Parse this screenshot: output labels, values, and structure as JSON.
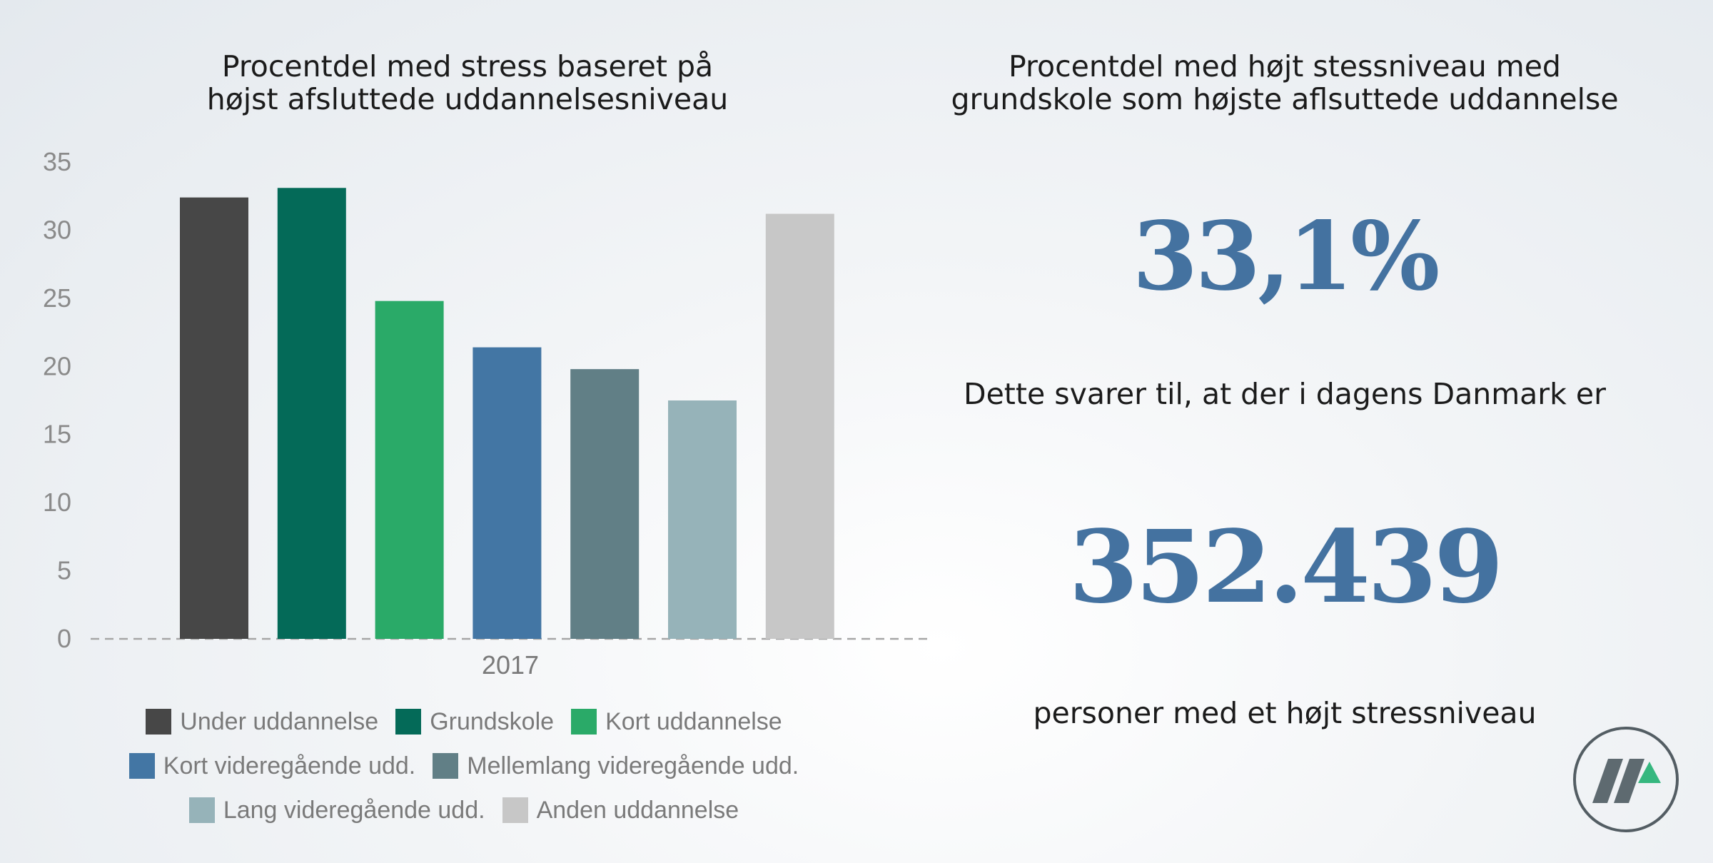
{
  "chart_data": {
    "type": "bar",
    "title": [
      "Procentdel med stress baseret på",
      "højst afsluttede uddannelsesniveau"
    ],
    "categories": [
      "2017"
    ],
    "xlabel": "",
    "ylabel": "",
    "ylim": [
      0,
      35
    ],
    "yticks": [
      "0",
      "5",
      "10",
      "15",
      "20",
      "25",
      "30",
      "35"
    ],
    "legend_position": "bottom",
    "series": [
      {
        "name": "Under uddannelse",
        "values": [
          32.4
        ],
        "color": "#474747"
      },
      {
        "name": "Grundskole",
        "values": [
          33.1
        ],
        "color": "#046a58"
      },
      {
        "name": "Kort uddannelse",
        "values": [
          24.8
        ],
        "color": "#2aaa68"
      },
      {
        "name": "Kort videregående udd.",
        "values": [
          21.4
        ],
        "color": "#4376a4"
      },
      {
        "name": "Mellemlang videregående udd.",
        "values": [
          19.8
        ],
        "color": "#617f86"
      },
      {
        "name": "Lang videregående udd.",
        "values": [
          17.5
        ],
        "color": "#96b3b9"
      },
      {
        "name": "Anden uddannelse",
        "values": [
          31.2
        ],
        "color": "#c7c7c7"
      }
    ],
    "legend_rows": [
      [
        0,
        1,
        2
      ],
      [
        3,
        4
      ],
      [
        5,
        6
      ]
    ]
  },
  "right_panel": {
    "title": [
      "Procentdel med højt stessniveau med",
      "grundskole som højste aflsuttede uddannelse"
    ],
    "big_percent": "33,1%",
    "statement_1": "Dette svarer til, at der i dagens Danmark er",
    "big_count": "352.439",
    "statement_2": "personer med et højt stressniveau",
    "accent_color": "#4472a0"
  },
  "logo": {
    "icon": "company-logo-icon"
  }
}
